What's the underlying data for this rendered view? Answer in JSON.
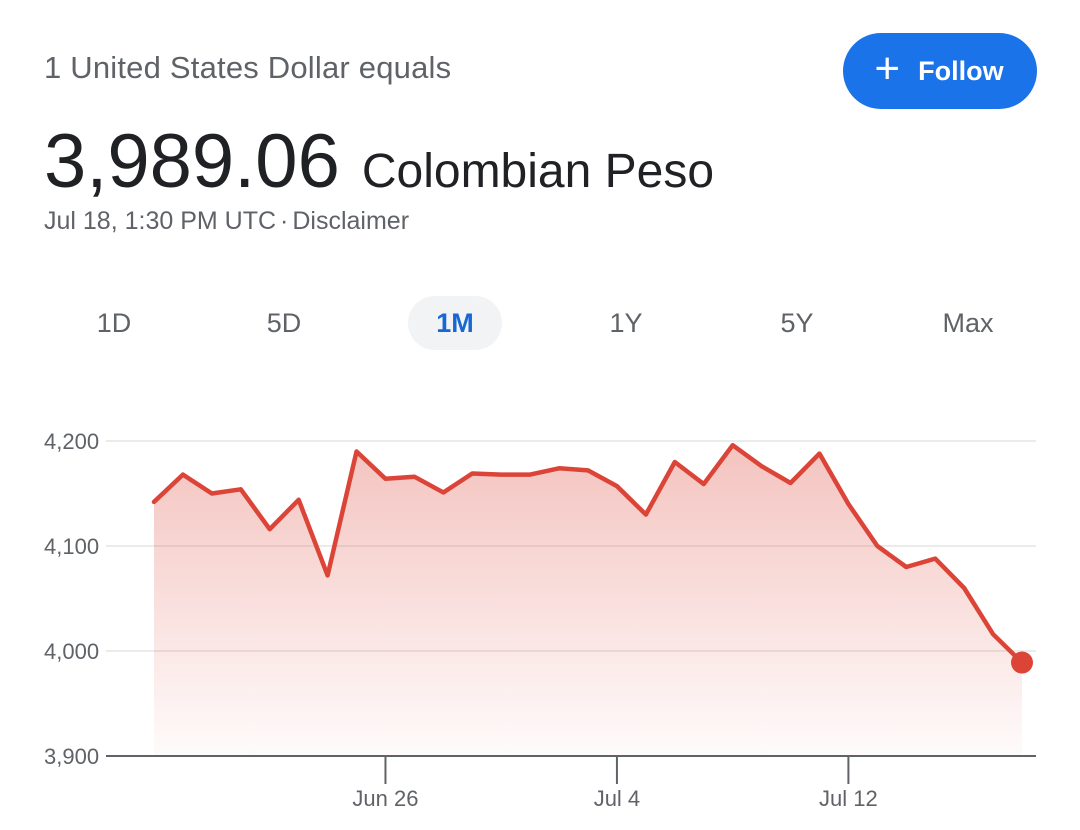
{
  "header": {
    "subtitle": "1 United States Dollar equals",
    "rate_value": "3,989.06",
    "rate_currency": "Colombian Peso",
    "timestamp": "Jul 18, 1:30 PM UTC",
    "separator": "·",
    "disclaimer": "Disclaimer"
  },
  "follow_button": {
    "icon": "plus-icon",
    "label": "Follow",
    "color": "#1a73e8"
  },
  "tabs": [
    {
      "label": "1D",
      "active": false
    },
    {
      "label": "5D",
      "active": false
    },
    {
      "label": "1M",
      "active": true
    },
    {
      "label": "1Y",
      "active": false
    },
    {
      "label": "5Y",
      "active": false
    },
    {
      "label": "Max",
      "active": false
    }
  ],
  "chart_data": {
    "type": "area",
    "line_color": "#db4437",
    "y_ticks": [
      "4,200",
      "4,100",
      "4,000",
      "3,900"
    ],
    "y_tick_values": [
      4200,
      4100,
      4000,
      3900
    ],
    "ylim": [
      3900,
      4200
    ],
    "x_ticks": [
      {
        "label": "Jun 26",
        "index": 8
      },
      {
        "label": "Jul 4",
        "index": 16
      },
      {
        "label": "Jul 12",
        "index": 24
      }
    ],
    "values": [
      4142,
      4168,
      4150,
      4154,
      4116,
      4144,
      4072,
      4190,
      4164,
      4166,
      4151,
      4169,
      4168,
      4168,
      4174,
      4172,
      4157,
      4130,
      4180,
      4159,
      4196,
      4176,
      4160,
      4188,
      4140,
      4100,
      4080,
      4088,
      4060,
      4016,
      3989
    ]
  }
}
